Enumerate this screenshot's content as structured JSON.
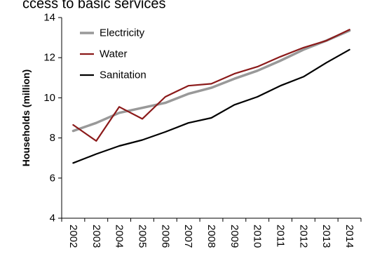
{
  "chart_data": {
    "type": "line",
    "title_partial": "ccess to basic services",
    "ylabel": "Households (million)",
    "xlabel": "",
    "ylim": [
      4,
      14
    ],
    "yticks": [
      4,
      6,
      8,
      10,
      12,
      14
    ],
    "categories": [
      "2002",
      "2003",
      "2004",
      "2005",
      "2006",
      "2007",
      "2008",
      "2009",
      "2010",
      "2011",
      "2012",
      "2013",
      "2014"
    ],
    "legend_position": "top-left",
    "grid": false,
    "series": [
      {
        "name": "Electricity",
        "color": "#999999",
        "values": [
          8.35,
          8.75,
          9.25,
          9.5,
          9.75,
          10.2,
          10.5,
          10.95,
          11.35,
          11.85,
          12.4,
          12.85,
          13.35
        ]
      },
      {
        "name": "Water",
        "color": "#8b1a1a",
        "values": [
          8.65,
          7.85,
          9.55,
          8.95,
          10.05,
          10.6,
          10.7,
          11.2,
          11.55,
          12.05,
          12.5,
          12.85,
          13.4
        ]
      },
      {
        "name": "Sanitation",
        "color": "#000000",
        "values": [
          6.75,
          7.2,
          7.6,
          7.9,
          8.3,
          8.75,
          9.0,
          9.65,
          10.05,
          10.6,
          11.05,
          11.75,
          12.4
        ]
      }
    ]
  }
}
